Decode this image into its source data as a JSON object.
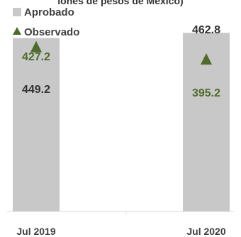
{
  "chart_data": {
    "type": "bar",
    "title": "",
    "xlabel": "",
    "ylabel": "",
    "categories": [
      "Jul 2019",
      "Jul 2020"
    ],
    "ylim": [
      0,
      500
    ],
    "grid": false,
    "legend_position": "top-left",
    "series": [
      {
        "name": "Aprobado",
        "mark": "bar",
        "values": [
          449.2,
          462.8
        ],
        "labels": [
          "449.2",
          "462.8"
        ],
        "color": "#c8c8c8",
        "label_color": "#333333"
      },
      {
        "name": "Observado",
        "mark": "triangle",
        "values": [
          427.2,
          395.2
        ],
        "labels": [
          "427.2",
          "395.2"
        ],
        "color": "#4e6b2c",
        "label_color": "#4e6b2c"
      }
    ]
  },
  "legend": {
    "aprobado_label": "Aprobado",
    "observado_label": "Observado"
  },
  "top_clipped_text": "lones de pesos de Mexico)"
}
